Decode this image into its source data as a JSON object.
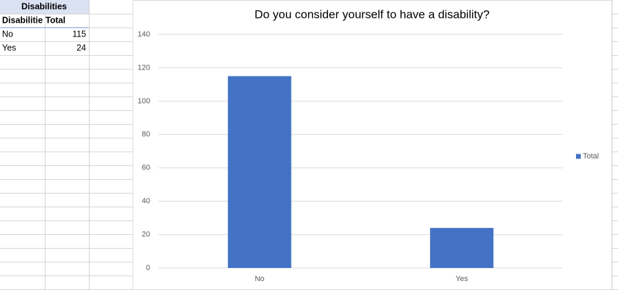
{
  "table": {
    "title": "Disabilities",
    "row_header": "Disabilitie"
  },
  "chart_data": {
    "type": "bar",
    "title": "Do you consider yourself to have a disability?",
    "categories": [
      "No",
      "Yes"
    ],
    "series": [
      {
        "name": "Total",
        "color": "#4472c4",
        "values": [
          115,
          24
        ]
      }
    ],
    "ylim": [
      0,
      140
    ],
    "yticks": [
      0,
      20,
      40,
      60,
      80,
      100,
      120,
      140
    ],
    "grid": true,
    "legend": "right"
  }
}
